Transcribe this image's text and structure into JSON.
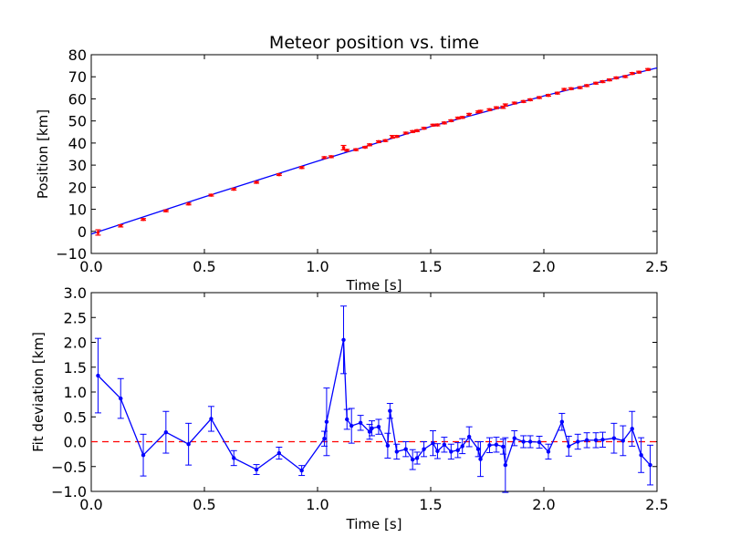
{
  "chart_data": [
    {
      "type": "line",
      "title": "Meteor position vs. time",
      "xlabel": "Time [s]",
      "ylabel": "Position [km]",
      "xlim": [
        0.0,
        2.5
      ],
      "ylim": [
        -10,
        80
      ],
      "xticks": [
        "0.0",
        "0.5",
        "1.0",
        "1.5",
        "2.0",
        "2.5"
      ],
      "yticks": [
        "−10",
        "0",
        "10",
        "20",
        "30",
        "40",
        "50",
        "60",
        "70",
        "80"
      ],
      "grid": false,
      "colors": {
        "fit": "#0000ff",
        "points": "#ff0000"
      },
      "fit_line": {
        "x": [
          0.0,
          0.5,
          1.0,
          1.5,
          2.0,
          2.5
        ],
        "y": [
          -1.2,
          15.6,
          31.8,
          47.5,
          61.3,
          74.0
        ]
      },
      "series": [
        {
          "x": [
            0.03,
            0.13,
            0.23,
            0.33,
            0.43,
            0.53,
            0.63,
            0.73,
            0.83,
            0.93,
            1.03,
            1.06,
            1.115,
            1.13,
            1.17,
            1.21,
            1.23,
            1.27,
            1.3,
            1.33,
            1.35,
            1.39,
            1.42,
            1.44,
            1.47,
            1.51,
            1.53,
            1.56,
            1.59,
            1.62,
            1.64,
            1.67,
            1.71,
            1.72,
            1.76,
            1.79,
            1.82,
            1.83,
            1.87,
            1.91,
            1.94,
            1.98,
            2.02,
            2.06,
            2.09,
            2.12,
            2.16,
            2.19,
            2.23,
            2.26,
            2.29,
            2.32,
            2.36,
            2.39,
            2.42,
            2.46
          ],
          "y": [
            -0.5,
            2.5,
            5.4,
            9.3,
            12.4,
            16.4,
            19.1,
            22.2,
            25.7,
            28.9,
            33.4,
            33.8,
            37.9,
            36.7,
            37.0,
            38.1,
            39.2,
            40.6,
            41.1,
            42.8,
            43.0,
            44.5,
            45.2,
            45.6,
            46.7,
            48.1,
            48.2,
            49.1,
            50.1,
            51.3,
            51.6,
            53.0,
            54.1,
            54.4,
            55.1,
            56.0,
            56.2,
            57.2,
            58.1,
            58.8,
            59.6,
            60.6,
            61.6,
            62.6,
            64.3,
            64.6,
            65.1,
            66.0,
            67.1,
            67.8,
            68.6,
            69.5,
            70.1,
            71.5,
            72.1,
            73.3
          ],
          "yerr": [
            1.2,
            0.5,
            0.4,
            0.4,
            0.4,
            0.4,
            0.4,
            0.4,
            0.4,
            0.4,
            0.4,
            0.4,
            1.0,
            0.4,
            0.4,
            0.3,
            0.4,
            0.4,
            0.4,
            0.6,
            0.4,
            0.4,
            0.4,
            0.4,
            0.4,
            0.4,
            0.4,
            0.4,
            0.4,
            0.4,
            0.4,
            0.4,
            0.4,
            0.4,
            0.4,
            0.4,
            0.5,
            0.5,
            0.4,
            0.4,
            0.4,
            0.4,
            0.4,
            0.4,
            0.4,
            0.4,
            0.4,
            0.4,
            0.4,
            0.4,
            0.4,
            0.4,
            0.4,
            0.4,
            0.4,
            0.4
          ]
        }
      ]
    },
    {
      "type": "line",
      "title": "",
      "xlabel": "Time [s]",
      "ylabel": "Fit deviation [km]",
      "xlim": [
        0.0,
        2.5
      ],
      "ylim": [
        -1.0,
        3.0
      ],
      "xticks": [
        "0.0",
        "0.5",
        "1.0",
        "1.5",
        "2.0",
        "2.5"
      ],
      "yticks": [
        "−1.0",
        "−0.5",
        "0.0",
        "0.5",
        "1.0",
        "1.5",
        "2.0",
        "2.5",
        "3.0"
      ],
      "grid": false,
      "reference_line": {
        "y": 0.0,
        "style": "dashed",
        "color": "#ff0000"
      },
      "colors": {
        "line": "#0000ff"
      },
      "series": [
        {
          "x": [
            0.03,
            0.13,
            0.23,
            0.33,
            0.43,
            0.53,
            0.63,
            0.73,
            0.83,
            0.93,
            1.03,
            1.04,
            1.115,
            1.13,
            1.15,
            1.19,
            1.23,
            1.24,
            1.27,
            1.31,
            1.32,
            1.35,
            1.39,
            1.42,
            1.44,
            1.47,
            1.51,
            1.53,
            1.56,
            1.59,
            1.62,
            1.64,
            1.67,
            1.71,
            1.72,
            1.76,
            1.79,
            1.82,
            1.83,
            1.87,
            1.91,
            1.94,
            1.98,
            2.02,
            2.08,
            2.11,
            2.15,
            2.19,
            2.23,
            2.26,
            2.31,
            2.35,
            2.39,
            2.43,
            2.47
          ],
          "y": [
            1.33,
            0.87,
            -0.27,
            0.19,
            -0.05,
            0.46,
            -0.33,
            -0.56,
            -0.23,
            -0.58,
            0.06,
            0.4,
            2.05,
            0.45,
            0.32,
            0.38,
            0.2,
            0.27,
            0.3,
            -0.08,
            0.62,
            -0.2,
            -0.15,
            -0.36,
            -0.33,
            -0.15,
            -0.03,
            -0.19,
            -0.06,
            -0.2,
            -0.17,
            -0.09,
            0.1,
            -0.15,
            -0.35,
            -0.07,
            -0.06,
            -0.1,
            -0.47,
            0.07,
            0.0,
            0.0,
            -0.01,
            -0.2,
            0.4,
            -0.09,
            0.0,
            0.03,
            0.03,
            0.04,
            0.07,
            0.02,
            0.26,
            -0.27,
            -0.47
          ],
          "yerr": [
            0.75,
            0.4,
            0.42,
            0.42,
            0.42,
            0.25,
            0.15,
            0.1,
            0.12,
            0.1,
            0.15,
            0.68,
            0.68,
            0.2,
            0.35,
            0.15,
            0.15,
            0.15,
            0.15,
            0.25,
            0.15,
            0.15,
            0.15,
            0.2,
            0.12,
            0.15,
            0.25,
            0.15,
            0.15,
            0.15,
            0.15,
            0.15,
            0.2,
            0.15,
            0.35,
            0.15,
            0.15,
            0.15,
            0.55,
            0.15,
            0.12,
            0.12,
            0.12,
            0.15,
            0.17,
            0.2,
            0.15,
            0.15,
            0.15,
            0.15,
            0.3,
            0.3,
            0.35,
            0.35,
            0.4
          ]
        }
      ]
    }
  ]
}
